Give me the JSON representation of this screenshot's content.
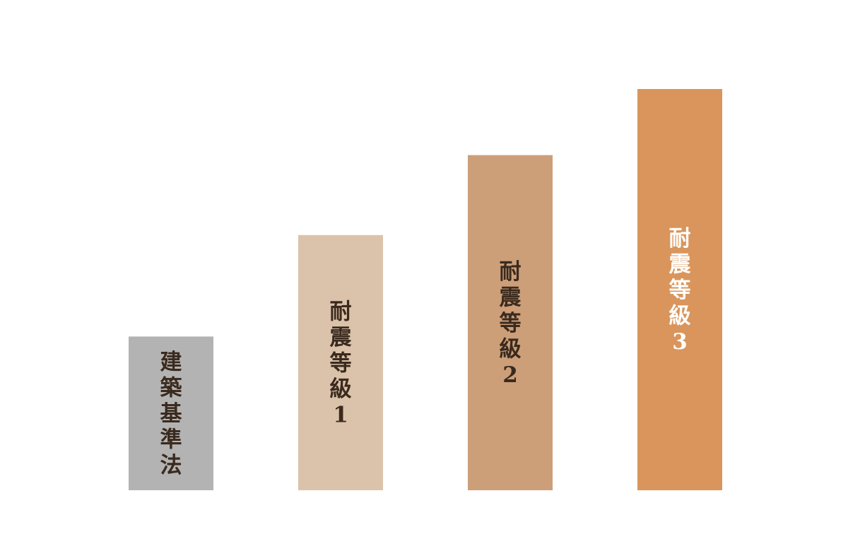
{
  "chart_data": {
    "type": "bar",
    "categories": [
      "建築基準法",
      "耐震等級1",
      "耐震等級2",
      "耐震等級3"
    ],
    "values": [
      1.0,
      1.66,
      2.18,
      2.61
    ],
    "ylim": [
      0,
      2.61
    ],
    "grid": false,
    "legend": "none",
    "bars": [
      {
        "label": "建築基準法",
        "color": "#b3b3b3",
        "text_color": "#3a2a1e"
      },
      {
        "label": "耐震等級1",
        "color": "#dbc2aa",
        "text_color": "#3a2a1e"
      },
      {
        "label": "耐震等級2",
        "color": "#cc9f79",
        "text_color": "#3a2a1e"
      },
      {
        "label": "耐震等級3",
        "color": "#d9955b",
        "text_color": "#ffffff"
      }
    ]
  }
}
